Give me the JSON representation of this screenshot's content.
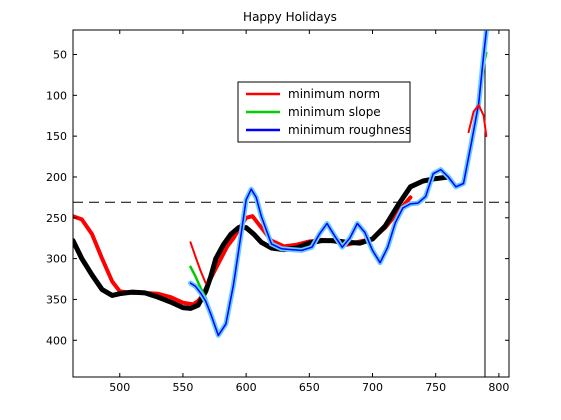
{
  "chart_data": {
    "type": "line",
    "title": "Happy Holidays",
    "xlabel": "",
    "ylabel": "",
    "xlim": [
      463,
      808
    ],
    "ylim": [
      20,
      445
    ],
    "y_reversed": true,
    "grid": false,
    "legend_position": "top-center",
    "x_ticks": [
      "500",
      "550",
      "600",
      "650",
      "700",
      "750",
      "800"
    ],
    "y_ticks": [
      "50",
      "100",
      "150",
      "200",
      "250",
      "300",
      "350",
      "400"
    ],
    "series": [
      {
        "name": "minimum norm",
        "color": "#ff0000",
        "in_legend": true,
        "x": [
          463,
          470,
          478,
          486,
          494,
          500,
          510,
          520,
          530,
          540,
          550,
          558,
          562,
          566,
          570,
          575,
          580,
          585,
          590,
          595,
          600,
          605,
          610,
          620,
          630,
          640,
          650,
          660,
          670,
          680,
          690,
          700,
          710,
          720,
          730
        ],
        "y": [
          248,
          252,
          270,
          300,
          328,
          340,
          342,
          342,
          343,
          347,
          354,
          356,
          352,
          344,
          330,
          315,
          300,
          285,
          275,
          262,
          250,
          248,
          258,
          278,
          285,
          283,
          279,
          277,
          279,
          283,
          279,
          276,
          262,
          243,
          225
        ]
      },
      {
        "name": "",
        "color": "#000000",
        "in_legend": false,
        "x": [
          463,
          470,
          478,
          486,
          494,
          500,
          510,
          520,
          530,
          540,
          550,
          556,
          562,
          568,
          572,
          576,
          582,
          588,
          594,
          600,
          606,
          612,
          620,
          630,
          640,
          650,
          660,
          670,
          680,
          690,
          700,
          710,
          720,
          730,
          740,
          750,
          760
        ],
        "y": [
          278,
          300,
          320,
          338,
          345,
          343,
          341,
          342,
          347,
          353,
          360,
          361,
          357,
          340,
          322,
          300,
          283,
          270,
          262,
          262,
          270,
          280,
          287,
          289,
          287,
          281,
          278,
          278,
          280,
          281,
          276,
          260,
          235,
          212,
          205,
          202,
          200
        ]
      },
      {
        "name": "minimum slope",
        "color": "#00cc00",
        "in_legend": true,
        "x": [
          556,
          560,
          564,
          568,
          572,
          578,
          584,
          590,
          596,
          600,
          604,
          608,
          612,
          620,
          628,
          636,
          644,
          652,
          658,
          664,
          670,
          676,
          682,
          688,
          694,
          700,
          706,
          712,
          718,
          724,
          730,
          736,
          742,
          748,
          754,
          760,
          766,
          772,
          778,
          784,
          788,
          790
        ],
        "y": [
          310,
          322,
          336,
          348,
          366,
          392,
          378,
          330,
          270,
          228,
          216,
          226,
          248,
          282,
          288,
          289,
          290,
          286,
          270,
          258,
          272,
          286,
          275,
          258,
          268,
          290,
          304,
          286,
          256,
          238,
          233,
          232,
          224,
          196,
          191,
          200,
          212,
          208,
          160,
          110,
          62,
          48
        ]
      },
      {
        "name": "minimum roughness",
        "color": "#0000ff",
        "in_legend": true,
        "x": [
          556,
          560,
          564,
          568,
          572,
          578,
          584,
          590,
          596,
          600,
          604,
          608,
          612,
          620,
          628,
          636,
          644,
          652,
          658,
          664,
          670,
          676,
          682,
          688,
          694,
          700,
          706,
          712,
          718,
          724,
          730,
          736,
          742,
          748,
          754,
          760,
          766,
          772,
          778,
          784,
          788,
          790
        ],
        "y": [
          330,
          334,
          342,
          352,
          368,
          394,
          380,
          332,
          270,
          228,
          215,
          225,
          248,
          282,
          288,
          289,
          290,
          286,
          270,
          257,
          272,
          286,
          275,
          257,
          268,
          290,
          305,
          286,
          256,
          238,
          233,
          232,
          224,
          196,
          191,
          200,
          212,
          208,
          160,
          110,
          50,
          22
        ]
      },
      {
        "name": "",
        "color": "#ff0000",
        "in_legend": false,
        "x": [
          776,
          780,
          784,
          788,
          790
        ],
        "y": [
          145,
          120,
          112,
          125,
          150
        ]
      },
      {
        "name": "",
        "color": "#ff0000",
        "in_legend": false,
        "x": [
          556,
          560,
          564,
          568
        ],
        "y": [
          280,
          298,
          315,
          330
        ]
      }
    ],
    "reference_lines": [
      {
        "orientation": "horizontal",
        "value": 231,
        "style": "dashed",
        "color": "#000000"
      },
      {
        "orientation": "horizontal",
        "value": 20,
        "style": "solid",
        "color": "#000000"
      },
      {
        "orientation": "vertical",
        "value": 789,
        "style": "solid",
        "color": "#000000"
      }
    ]
  }
}
